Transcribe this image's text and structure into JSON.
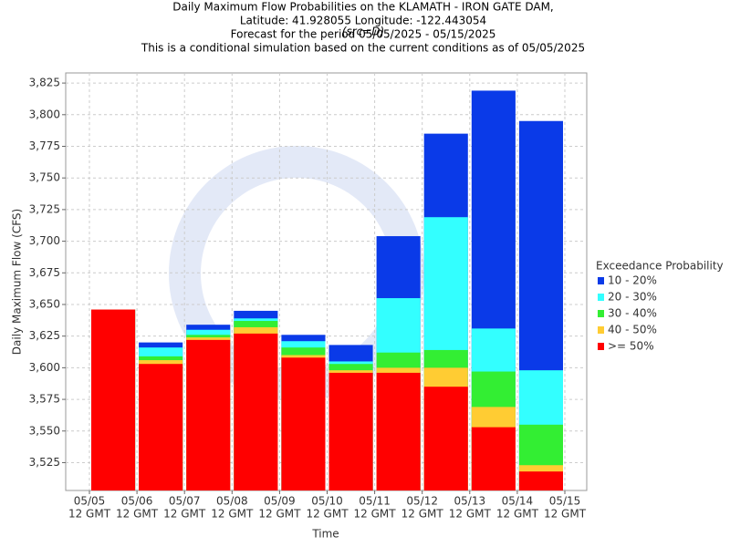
{
  "chart_data": {
    "type": "bar",
    "title": [
      "Daily Maximum Flow Probabilities on the KLAMATH - IRON GATE DAM,",
      "Latitude: 41.928055 Longitude: -122.443054",
      "Forecast for the period 05/05/2025 - 05/15/2025",
      "This is a conditional simulation based on the current conditions as of 05/05/2025"
    ],
    "subtitle": "(src=D)",
    "xlabel": "Time",
    "ylabel": "Daily Maximum Flow (CFS)",
    "xticks": [
      {
        "date": "05/05",
        "time": "12 GMT"
      },
      {
        "date": "05/06",
        "time": "12 GMT"
      },
      {
        "date": "05/07",
        "time": "12 GMT"
      },
      {
        "date": "05/08",
        "time": "12 GMT"
      },
      {
        "date": "05/09",
        "time": "12 GMT"
      },
      {
        "date": "05/10",
        "time": "12 GMT"
      },
      {
        "date": "05/11",
        "time": "12 GMT"
      },
      {
        "date": "05/12",
        "time": "12 GMT"
      },
      {
        "date": "05/13",
        "time": "12 GMT"
      },
      {
        "date": "05/14",
        "time": "12 GMT"
      },
      {
        "date": "05/15",
        "time": "12 GMT"
      }
    ],
    "legend_title": "Exceedance Probability",
    "series": [
      {
        "name": "10 - 20%",
        "color": "#0a3ae8",
        "values": [
          3646,
          3620,
          3634,
          3645,
          3626,
          3618,
          3704,
          3785,
          3819,
          3795
        ]
      },
      {
        "name": "20 - 30%",
        "color": "#33ffff",
        "values": [
          3646,
          3616,
          3630,
          3639,
          3621,
          3605,
          3655,
          3719,
          3631,
          3598
        ]
      },
      {
        "name": "30 - 40%",
        "color": "#33ee33",
        "values": [
          3646,
          3609,
          3626,
          3637,
          3616,
          3603,
          3612,
          3614,
          3597,
          3555
        ]
      },
      {
        "name": "40 - 50%",
        "color": "#ffcc33",
        "values": [
          3646,
          3606,
          3624,
          3632,
          3610,
          3598,
          3600,
          3600,
          3569,
          3523
        ]
      },
      {
        "name": ">= 50%",
        "color": "#ff0000",
        "values": [
          3646,
          3603,
          3622,
          3627,
          3608,
          3596,
          3596,
          3585,
          3553,
          3518
        ]
      }
    ],
    "ylim": [
      3503,
      3833
    ],
    "yticks": [
      {
        "value": 3525,
        "label": "3,525"
      },
      {
        "value": 3550,
        "label": "3,550"
      },
      {
        "value": 3575,
        "label": "3,575"
      },
      {
        "value": 3600,
        "label": "3,600"
      },
      {
        "value": 3625,
        "label": "3,625"
      },
      {
        "value": 3650,
        "label": "3,650"
      },
      {
        "value": 3675,
        "label": "3,675"
      },
      {
        "value": 3700,
        "label": "3,700"
      },
      {
        "value": 3725,
        "label": "3,725"
      },
      {
        "value": 3750,
        "label": "3,750"
      },
      {
        "value": 3775,
        "label": "3,775"
      },
      {
        "value": 3800,
        "label": "3,800"
      },
      {
        "value": 3825,
        "label": "3,825"
      }
    ],
    "grid": true
  }
}
